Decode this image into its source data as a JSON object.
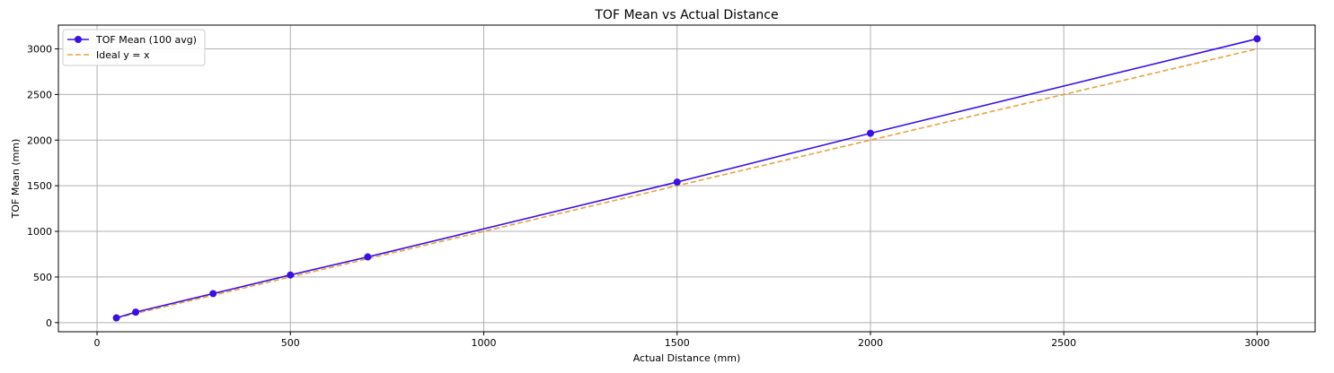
{
  "chart_data": {
    "type": "line",
    "title": "TOF Mean vs Actual Distance",
    "xlabel": "Actual Distance (mm)",
    "ylabel": "TOF Mean (mm)",
    "xlim": [
      -100,
      3150
    ],
    "ylim": [
      -100,
      3260
    ],
    "xticks": [
      0,
      500,
      1000,
      1500,
      2000,
      2500,
      3000
    ],
    "yticks": [
      0,
      500,
      1000,
      1500,
      2000,
      2500,
      3000
    ],
    "grid": true,
    "legend_position": "top-left",
    "series": [
      {
        "name": "TOF Mean (100 avg)",
        "style": "solid",
        "markers": true,
        "color": "#3a10e5",
        "x": [
          50,
          100,
          300,
          500,
          700,
          1500,
          2000,
          3000
        ],
        "y": [
          52,
          115,
          318,
          522,
          720,
          1540,
          2075,
          3110
        ]
      },
      {
        "name": "Ideal y = x",
        "style": "dashed",
        "markers": false,
        "color": "#e8a33d",
        "x": [
          50,
          3000
        ],
        "y": [
          50,
          3000
        ]
      }
    ]
  }
}
